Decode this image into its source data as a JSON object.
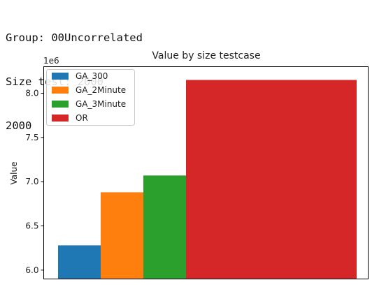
{
  "output": {
    "lines": [
      "Group: 00Uncorrelated",
      "Size test: 2000",
      "2000"
    ]
  },
  "chart_data": {
    "type": "bar",
    "title": "Value by size testcase",
    "xlabel": "",
    "ylabel": "Value",
    "y_offset_label": "1e6",
    "ylim": [
      5.9,
      8.3
    ],
    "yticks": [
      6.0,
      6.5,
      7.0,
      7.5,
      8.0
    ],
    "ytick_labels": [
      "6.0",
      "6.5",
      "7.0",
      "7.5",
      "8.0"
    ],
    "grid": false,
    "legend_position": "top-left",
    "series": [
      {
        "name": "GA_300",
        "value": 6.28,
        "color": "#1f77b4",
        "width": 1
      },
      {
        "name": "GA_2Minute",
        "value": 6.88,
        "color": "#ff7f0e",
        "width": 1
      },
      {
        "name": "GA_3Minute",
        "value": 7.07,
        "color": "#2ca02c",
        "width": 1
      },
      {
        "name": "OR",
        "value": 8.15,
        "color": "#d62728",
        "width": 4
      }
    ]
  }
}
